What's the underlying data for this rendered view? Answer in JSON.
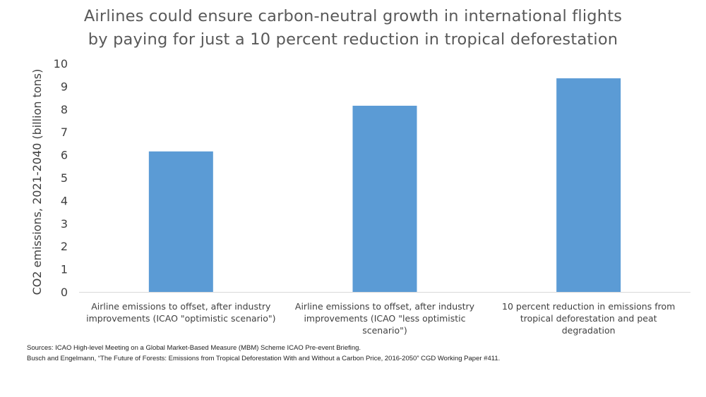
{
  "chart_data": {
    "type": "bar",
    "title_lines": [
      "Airlines could ensure carbon-neutral growth in international flights",
      "by paying for just a 10 percent reduction in tropical deforestation"
    ],
    "ylabel": "CO2 emissions, 2021-2040 (billion tons)",
    "xlabel": "",
    "ylim": [
      0,
      10
    ],
    "yticks": [
      "0",
      "1",
      "2",
      "3",
      "4",
      "5",
      "6",
      "7",
      "8",
      "9",
      "10"
    ],
    "grid": false,
    "categories": [
      [
        "Airline emissions to offset, after industry",
        "improvements (ICAO \"optimistic scenario\")"
      ],
      [
        "Airline emissions to offset, after industry",
        "improvements (ICAO \"less optimistic",
        "scenario\")"
      ],
      [
        "10 percent reduction in emissions from",
        "tropical deforestation and peat",
        "degradation"
      ]
    ],
    "values": [
      6.15,
      8.15,
      9.35
    ],
    "bar_color": "#5B9BD5",
    "axis_color": "#d9d9d9"
  },
  "sources": [
    "Sources: ICAO High-level Meeting on a Global Market-Based Measure (MBM) Scheme ICAO Pre-event Briefing.",
    "Busch and Engelmann, “The Future of Forests: Emissions from Tropical Deforestation With and Without a Carbon Price, 2016-2050” CGD Working Paper #411."
  ]
}
